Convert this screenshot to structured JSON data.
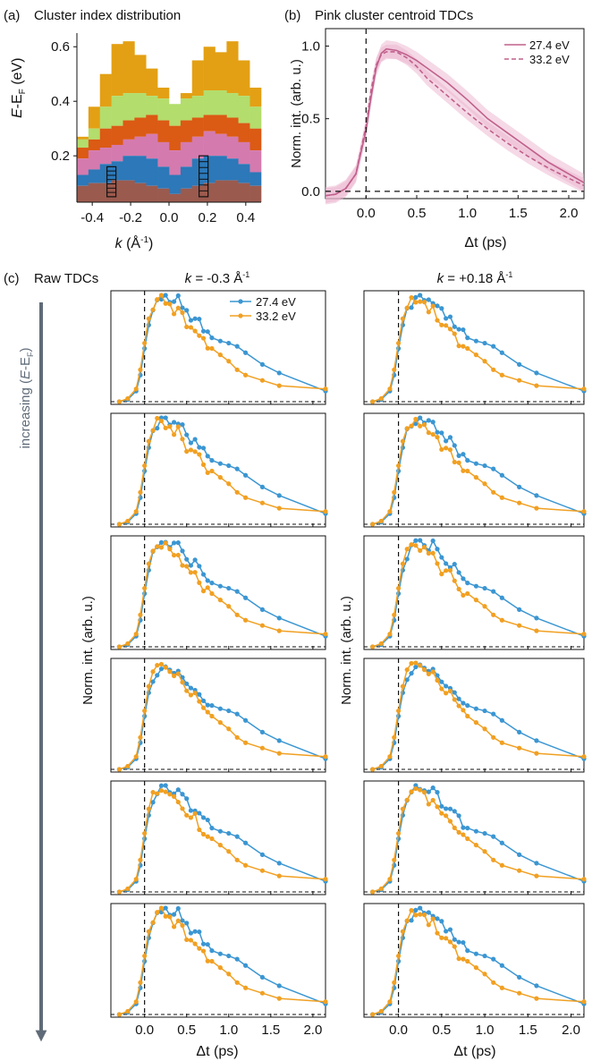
{
  "colors": {
    "blue": "#3b96d2",
    "orange": "#f1a022",
    "pink_line": "#c0608c",
    "pink_band": "#ecb3cd",
    "cluster_orange": "#e3a014",
    "cluster_green": "#b3dd6c",
    "cluster_red": "#db5a14",
    "cluster_pink": "#d57aae",
    "cluster_blue": "#2c78b8",
    "cluster_brown": "#9b5a4e",
    "arrow": "#5f6b78"
  },
  "panel_a": {
    "label": "(a)",
    "title": "Cluster index distribution",
    "ylabel_main": "E",
    "ylabel_mid": "-E",
    "ylabel_sub": "F",
    "ylabel_unit": " (eV)",
    "xlabel_k": "k",
    "xlabel_unit": " (Å",
    "xlabel_sup": "-1",
    "xlabel_close": ")",
    "xticks": [
      "-0.4",
      "-0.2",
      "0.0",
      "0.2",
      "0.4"
    ],
    "yticks": [
      "0.2",
      "0.4",
      "0.6"
    ]
  },
  "panel_b": {
    "label": "(b)",
    "title": "Pink cluster centroid TDCs",
    "ylabel": "Norm. int. (arb. u.)",
    "xlabel": "Δt (ps)",
    "xticks": [
      "0.0",
      "0.5",
      "1.0",
      "1.5",
      "2.0"
    ],
    "yticks": [
      "0.0",
      "0.5",
      "1.0"
    ],
    "legend": [
      "27.4 eV",
      "33.2 eV"
    ]
  },
  "panel_c": {
    "label": "(c)",
    "title": "Raw TDCs",
    "col_left_k": "k",
    "col_left_val": " = -0.3 Å",
    "col_right_val": " = +0.18 Å",
    "col_sup": "-1",
    "ylabel": "Norm. int. (arb. u.)",
    "xlabel": "Δt (ps)",
    "xticks": [
      "0.0",
      "0.5",
      "1.0",
      "1.5",
      "2.0"
    ],
    "legend": [
      "27.4 eV",
      "33.2 eV"
    ],
    "arrow_label_pre": "increasing (",
    "arrow_label_e": "E",
    "arrow_label_mid": "-E",
    "arrow_label_sub": "F",
    "arrow_label_post": ")"
  },
  "chart_data": [
    {
      "type": "heatmap",
      "title": "Cluster index distribution",
      "xlabel": "k (Å-1)",
      "ylabel": "E-EF (eV)",
      "xlim": [
        -0.48,
        0.48
      ],
      "ylim": [
        0.03,
        0.65
      ],
      "clusters": [
        "orange",
        "green",
        "red",
        "pink",
        "blue",
        "brown"
      ],
      "boundaries_x": [
        -0.48,
        -0.42,
        -0.36,
        -0.3,
        -0.24,
        -0.18,
        -0.12,
        -0.06,
        0.0,
        0.06,
        0.12,
        0.18,
        0.24,
        0.3,
        0.36,
        0.42,
        0.48
      ],
      "top_of_orange": [
        0.27,
        0.38,
        0.5,
        0.61,
        0.62,
        0.57,
        0.52,
        0.45,
        0.39,
        0.43,
        0.55,
        0.6,
        0.58,
        0.62,
        0.55,
        0.45
      ],
      "top_of_green": [
        0.26,
        0.3,
        0.38,
        0.42,
        0.43,
        0.43,
        0.42,
        0.41,
        0.39,
        0.41,
        0.42,
        0.44,
        0.44,
        0.43,
        0.42,
        0.38
      ],
      "top_of_red": [
        0.23,
        0.26,
        0.3,
        0.31,
        0.33,
        0.34,
        0.35,
        0.33,
        0.31,
        0.33,
        0.34,
        0.35,
        0.35,
        0.34,
        0.32,
        0.3
      ],
      "top_of_pink": [
        0.19,
        0.22,
        0.23,
        0.24,
        0.26,
        0.27,
        0.28,
        0.25,
        0.22,
        0.25,
        0.27,
        0.29,
        0.28,
        0.27,
        0.25,
        0.22
      ],
      "top_of_blue": [
        0.13,
        0.15,
        0.17,
        0.18,
        0.2,
        0.2,
        0.19,
        0.16,
        0.13,
        0.16,
        0.19,
        0.2,
        0.2,
        0.19,
        0.17,
        0.14
      ],
      "top_of_brown": [
        0.09,
        0.1,
        0.1,
        0.11,
        0.11,
        0.1,
        0.09,
        0.08,
        0.06,
        0.08,
        0.09,
        0.1,
        0.11,
        0.11,
        0.1,
        0.09
      ],
      "boxes": [
        {
          "k": -0.3,
          "e_min": 0.05,
          "e_max": 0.16
        },
        {
          "k": 0.18,
          "e_min": 0.05,
          "e_max": 0.2
        }
      ]
    },
    {
      "type": "line",
      "title": "Pink cluster centroid TDCs",
      "xlabel": "Δt (ps)",
      "ylabel": "Norm. int. (arb. u.)",
      "xlim": [
        -0.4,
        2.15
      ],
      "ylim": [
        -0.05,
        1.12
      ],
      "x": [
        -0.4,
        -0.3,
        -0.2,
        -0.1,
        0.0,
        0.05,
        0.1,
        0.15,
        0.2,
        0.3,
        0.4,
        0.5,
        0.6,
        0.8,
        1.0,
        1.2,
        1.4,
        1.6,
        1.8,
        2.0,
        2.15
      ],
      "series": [
        {
          "name": "27.4 eV",
          "values": [
            -0.03,
            -0.02,
            0.02,
            0.12,
            0.42,
            0.65,
            0.85,
            0.95,
            0.98,
            0.97,
            0.94,
            0.9,
            0.85,
            0.75,
            0.63,
            0.5,
            0.4,
            0.3,
            0.2,
            0.12,
            0.06
          ],
          "band": 0.06
        },
        {
          "name": "33.2 eV",
          "values": [
            -0.03,
            -0.02,
            0.02,
            0.12,
            0.45,
            0.7,
            0.87,
            0.94,
            0.96,
            0.96,
            0.92,
            0.86,
            0.78,
            0.66,
            0.54,
            0.43,
            0.33,
            0.24,
            0.16,
            0.09,
            0.04
          ],
          "band": 0.05
        }
      ]
    },
    {
      "type": "line",
      "title": "Raw TDCs",
      "columns": [
        "k = -0.3 Å-1",
        "k = +0.18 Å-1"
      ],
      "rows": 6,
      "xlim": [
        -0.4,
        2.15
      ],
      "x": [
        -0.3,
        -0.2,
        -0.1,
        -0.05,
        0.0,
        0.05,
        0.1,
        0.15,
        0.2,
        0.25,
        0.3,
        0.35,
        0.4,
        0.45,
        0.5,
        0.55,
        0.6,
        0.65,
        0.7,
        0.75,
        0.8,
        0.9,
        1.0,
        1.1,
        1.2,
        1.4,
        1.6,
        2.15
      ],
      "series": [
        {
          "name": "27.4 eV",
          "values": [
            0.0,
            0.02,
            0.1,
            0.25,
            0.5,
            0.72,
            0.86,
            0.92,
            0.98,
            1.0,
            0.97,
            0.94,
            0.96,
            0.9,
            0.84,
            0.8,
            0.78,
            0.74,
            0.68,
            0.64,
            0.6,
            0.57,
            0.55,
            0.52,
            0.46,
            0.35,
            0.27,
            0.1
          ]
        },
        {
          "name": "33.2 eV",
          "values": [
            0.0,
            0.03,
            0.12,
            0.3,
            0.55,
            0.78,
            0.9,
            0.96,
            0.97,
            0.94,
            0.9,
            0.86,
            0.88,
            0.8,
            0.72,
            0.68,
            0.7,
            0.62,
            0.56,
            0.52,
            0.5,
            0.44,
            0.38,
            0.3,
            0.25,
            0.2,
            0.15,
            0.12
          ]
        }
      ]
    }
  ]
}
